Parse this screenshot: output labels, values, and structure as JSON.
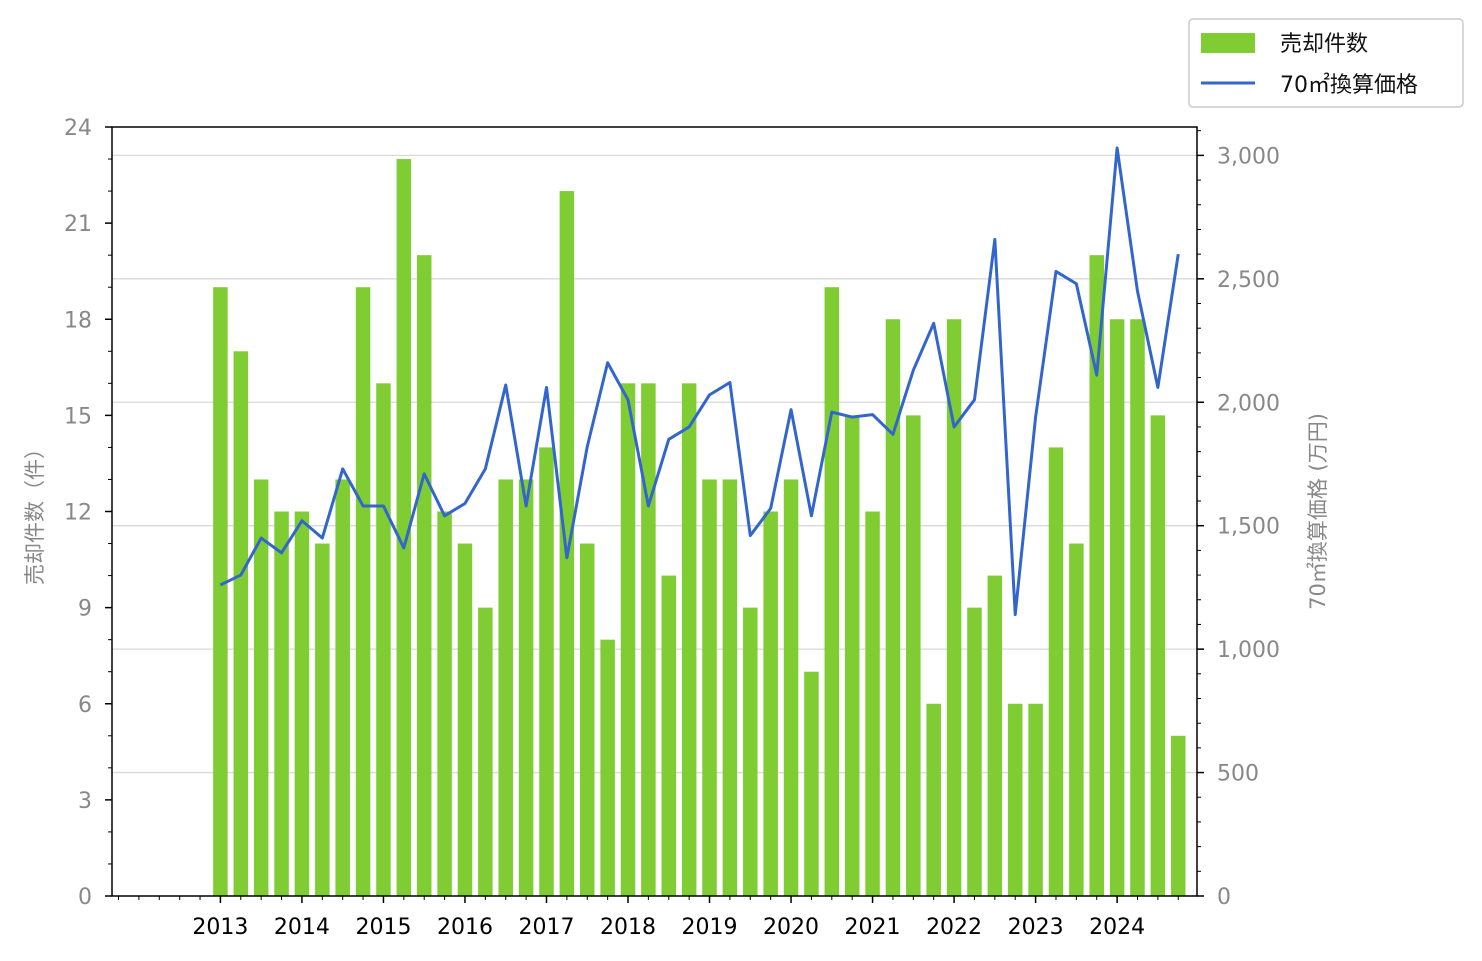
{
  "chart_data": {
    "type": "bar",
    "x": [
      2013.0,
      2013.25,
      2013.5,
      2013.75,
      2014.0,
      2014.25,
      2014.5,
      2014.75,
      2015.0,
      2015.25,
      2015.5,
      2015.75,
      2016.0,
      2016.25,
      2016.5,
      2016.75,
      2017.0,
      2017.25,
      2017.5,
      2017.75,
      2018.0,
      2018.25,
      2018.5,
      2018.75,
      2019.0,
      2019.25,
      2019.5,
      2019.75,
      2020.0,
      2020.25,
      2020.5,
      2020.75,
      2021.0,
      2021.25,
      2021.5,
      2021.75,
      2022.0,
      2022.25,
      2022.5,
      2022.75,
      2023.0,
      2023.25,
      2023.5,
      2023.75,
      2024.0,
      2024.25,
      2024.5,
      2024.75
    ],
    "xticks": [
      "2013",
      "2014",
      "2015",
      "2016",
      "2017",
      "2018",
      "2019",
      "2020",
      "2021",
      "2022",
      "2023",
      "2024"
    ],
    "xlim": [
      2011.67,
      2024.98
    ],
    "series": [
      {
        "name": "売却件数",
        "type": "bar",
        "axis": "left",
        "color": "#80cc33",
        "values": [
          19,
          17,
          13,
          12,
          12,
          11,
          13,
          19,
          16,
          23,
          20,
          12,
          11,
          9,
          13,
          13,
          14,
          22,
          11,
          8,
          16,
          16,
          10,
          16,
          13,
          13,
          9,
          12,
          13,
          7,
          19,
          15,
          12,
          18,
          15,
          6,
          18,
          9,
          10,
          6,
          6,
          14,
          11,
          20,
          18,
          18,
          15,
          5
        ]
      },
      {
        "name": "70㎡換算価格",
        "type": "line",
        "axis": "right",
        "color": "#3366cc",
        "values": [
          1260,
          1300,
          1450,
          1390,
          1520,
          1450,
          1730,
          1580,
          1580,
          1410,
          1710,
          1540,
          1590,
          1730,
          2070,
          1580,
          2060,
          1370,
          1820,
          2160,
          2010,
          1580,
          1850,
          1900,
          2030,
          2080,
          1460,
          1570,
          1970,
          1540,
          1960,
          1940,
          1950,
          1870,
          2130,
          2320,
          1900,
          2010,
          2660,
          1140,
          1940,
          2530,
          2480,
          2110,
          3030,
          2450,
          2060,
          2600
        ]
      }
    ],
    "ylabel": "売却件数（件）",
    "ylim": [
      0,
      24
    ],
    "yticks": [
      "0",
      "3",
      "6",
      "9",
      "12",
      "15",
      "18",
      "21",
      "24"
    ],
    "y2label": "70㎡換算価格 (万円)",
    "y2lim": [
      0,
      3115
    ],
    "y2ticks": [
      "0",
      "500",
      "1,000",
      "1,500",
      "2,000",
      "2,500",
      "3,000"
    ],
    "grid": "horizontal lines at right-axis ticks",
    "legend": "top-right, outside plot"
  }
}
